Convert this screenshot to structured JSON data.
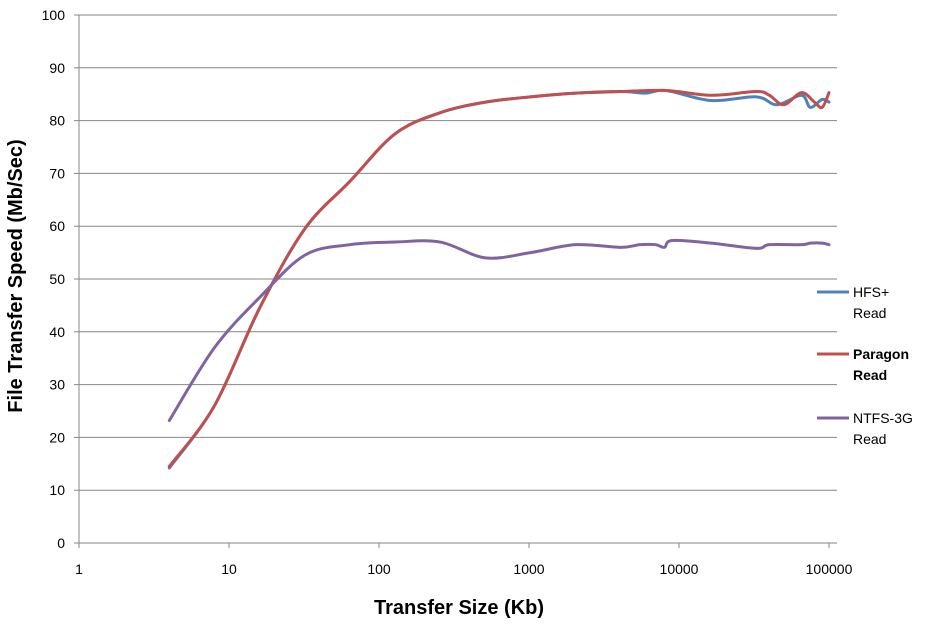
{
  "chart_data": {
    "type": "line",
    "xlabel": "Transfer Size (Kb)",
    "ylabel": "File Transfer Speed (Mb/Sec)",
    "x_scale": "log",
    "xlim": [
      1,
      100000
    ],
    "ylim": [
      0,
      100
    ],
    "x_ticks": [
      "1",
      "10",
      "100",
      "1000",
      "10000",
      "100000"
    ],
    "y_ticks": [
      "0",
      "10",
      "20",
      "30",
      "40",
      "50",
      "60",
      "70",
      "80",
      "90",
      "100"
    ],
    "grid": "horizontal",
    "legend_position": "right",
    "series": [
      {
        "name": "HFS+ Read",
        "legend_lines": [
          "HFS+",
          "Read"
        ],
        "bold": false,
        "color": "#4F81BD",
        "x": [
          4,
          8,
          16,
          32,
          64,
          128,
          256,
          512,
          1024,
          2048,
          4096,
          6000,
          8192,
          16384,
          32768,
          45000,
          65536,
          75000,
          90000,
          100000
        ],
        "y": [
          14.2,
          26,
          44.5,
          59.5,
          68.5,
          77.5,
          81.5,
          83.5,
          84.5,
          85.2,
          85.5,
          85.2,
          85.7,
          83.8,
          84.5,
          83.0,
          84.8,
          82.5,
          84.0,
          83.5
        ]
      },
      {
        "name": "Paragon Read",
        "legend_lines": [
          "Paragon",
          "Read"
        ],
        "bold": true,
        "color": "#C0504D",
        "x": [
          4,
          8,
          16,
          32,
          64,
          128,
          256,
          512,
          1024,
          2048,
          4096,
          8192,
          16384,
          32768,
          40000,
          50000,
          65536,
          80000,
          90000,
          100000
        ],
        "y": [
          14.5,
          26,
          44.5,
          59.5,
          68.5,
          77.5,
          81.5,
          83.5,
          84.5,
          85.2,
          85.5,
          85.7,
          84.8,
          85.5,
          84.8,
          83.0,
          85.3,
          83.5,
          82.5,
          85.3
        ]
      },
      {
        "name": "NTFS-3G Read",
        "legend_lines": [
          "NTFS-3G",
          "Read"
        ],
        "bold": false,
        "color": "#8064A2",
        "x": [
          4,
          8,
          16,
          32,
          64,
          128,
          256,
          512,
          1024,
          2048,
          4096,
          5500,
          7000,
          8000,
          9000,
          16384,
          32768,
          40000,
          65536,
          75000,
          90000,
          100000
        ],
        "y": [
          23.2,
          37,
          46.5,
          54.5,
          56.5,
          57.0,
          57.0,
          54.0,
          55.0,
          56.5,
          56.0,
          56.5,
          56.5,
          56.0,
          57.3,
          56.8,
          55.8,
          56.5,
          56.5,
          56.8,
          56.8,
          56.5
        ]
      }
    ]
  }
}
